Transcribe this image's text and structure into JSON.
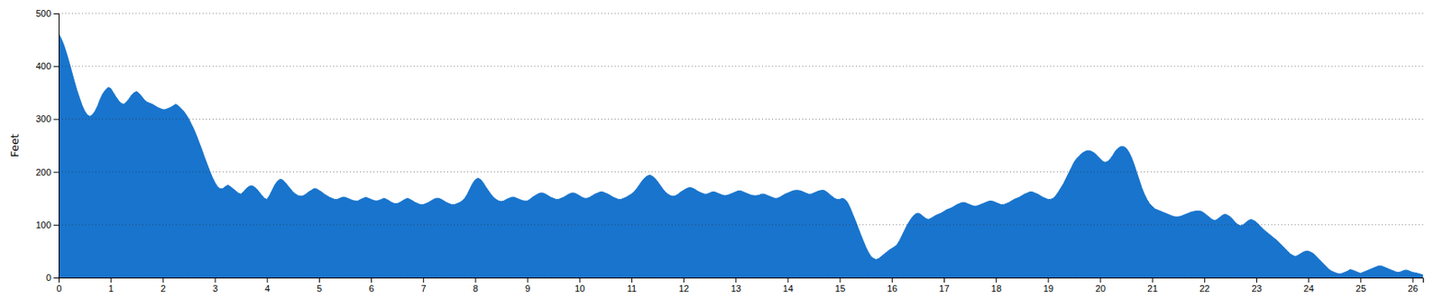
{
  "chart_data": {
    "type": "area",
    "ylabel": "Feet",
    "color": "#1874CD",
    "grid": true,
    "xlim": [
      0,
      26.2
    ],
    "ylim": [
      0,
      500
    ],
    "xticks": [
      0,
      1,
      2,
      3,
      4,
      5,
      6,
      7,
      8,
      9,
      10,
      11,
      12,
      13,
      14,
      15,
      16,
      17,
      18,
      19,
      20,
      21,
      22,
      23,
      24,
      25,
      26
    ],
    "yticks": [
      0,
      100,
      200,
      300,
      400,
      500
    ],
    "x": [
      0.0,
      0.05,
      0.1,
      0.15,
      0.2,
      0.25,
      0.3,
      0.35,
      0.4,
      0.45,
      0.5,
      0.55,
      0.6,
      0.65,
      0.7,
      0.75,
      0.8,
      0.85,
      0.9,
      0.95,
      1.0,
      1.05,
      1.1,
      1.15,
      1.2,
      1.25,
      1.3,
      1.35,
      1.4,
      1.45,
      1.5,
      1.55,
      1.6,
      1.65,
      1.7,
      1.75,
      1.8,
      1.85,
      1.9,
      1.95,
      2.0,
      2.05,
      2.1,
      2.15,
      2.2,
      2.25,
      2.3,
      2.35,
      2.4,
      2.45,
      2.5,
      2.55,
      2.6,
      2.65,
      2.7,
      2.75,
      2.8,
      2.85,
      2.9,
      2.95,
      3.0,
      3.05,
      3.1,
      3.15,
      3.2,
      3.25,
      3.3,
      3.35,
      3.4,
      3.45,
      3.5,
      3.55,
      3.6,
      3.65,
      3.7,
      3.75,
      3.8,
      3.85,
      3.9,
      3.95,
      4.0,
      4.05,
      4.1,
      4.15,
      4.2,
      4.25,
      4.3,
      4.35,
      4.4,
      4.45,
      4.5,
      4.55,
      4.6,
      4.65,
      4.7,
      4.75,
      4.8,
      4.85,
      4.9,
      4.95,
      5.0,
      5.05,
      5.1,
      5.15,
      5.2,
      5.25,
      5.3,
      5.35,
      5.4,
      5.45,
      5.5,
      5.55,
      5.6,
      5.65,
      5.7,
      5.75,
      5.8,
      5.85,
      5.9,
      5.95,
      6.0,
      6.05,
      6.1,
      6.15,
      6.2,
      6.25,
      6.3,
      6.35,
      6.4,
      6.45,
      6.5,
      6.55,
      6.6,
      6.65,
      6.7,
      6.75,
      6.8,
      6.85,
      6.9,
      6.95,
      7.0,
      7.05,
      7.1,
      7.15,
      7.2,
      7.25,
      7.3,
      7.35,
      7.4,
      7.45,
      7.5,
      7.55,
      7.6,
      7.65,
      7.7,
      7.75,
      7.8,
      7.85,
      7.9,
      7.95,
      8.0,
      8.05,
      8.1,
      8.15,
      8.2,
      8.25,
      8.3,
      8.35,
      8.4,
      8.45,
      8.5,
      8.55,
      8.6,
      8.65,
      8.7,
      8.75,
      8.8,
      8.85,
      8.9,
      8.95,
      9.0,
      9.05,
      9.1,
      9.15,
      9.2,
      9.25,
      9.3,
      9.35,
      9.4,
      9.45,
      9.5,
      9.55,
      9.6,
      9.65,
      9.7,
      9.75,
      9.8,
      9.85,
      9.9,
      9.95,
      10.0,
      10.05,
      10.1,
      10.15,
      10.2,
      10.25,
      10.3,
      10.35,
      10.4,
      10.45,
      10.5,
      10.55,
      10.6,
      10.65,
      10.7,
      10.75,
      10.8,
      10.85,
      10.9,
      10.95,
      11.0,
      11.05,
      11.1,
      11.15,
      11.2,
      11.25,
      11.3,
      11.35,
      11.4,
      11.45,
      11.5,
      11.55,
      11.6,
      11.65,
      11.7,
      11.75,
      11.8,
      11.85,
      11.9,
      11.95,
      12.0,
      12.05,
      12.1,
      12.15,
      12.2,
      12.25,
      12.3,
      12.35,
      12.4,
      12.45,
      12.5,
      12.55,
      12.6,
      12.65,
      12.7,
      12.75,
      12.8,
      12.85,
      12.9,
      12.95,
      13.0,
      13.05,
      13.1,
      13.15,
      13.2,
      13.25,
      13.3,
      13.35,
      13.4,
      13.45,
      13.5,
      13.55,
      13.6,
      13.65,
      13.7,
      13.75,
      13.8,
      13.85,
      13.9,
      13.95,
      14.0,
      14.05,
      14.1,
      14.15,
      14.2,
      14.25,
      14.3,
      14.35,
      14.4,
      14.45,
      14.5,
      14.55,
      14.6,
      14.65,
      14.7,
      14.75,
      14.8,
      14.85,
      14.9,
      14.95,
      15.0,
      15.05,
      15.1,
      15.15,
      15.2,
      15.25,
      15.3,
      15.35,
      15.4,
      15.45,
      15.5,
      15.55,
      15.6,
      15.65,
      15.7,
      15.75,
      15.8,
      15.85,
      15.9,
      15.95,
      16.0,
      16.05,
      16.1,
      16.15,
      16.2,
      16.25,
      16.3,
      16.35,
      16.4,
      16.45,
      16.5,
      16.55,
      16.6,
      16.65,
      16.7,
      16.75,
      16.8,
      16.85,
      16.9,
      16.95,
      17.0,
      17.05,
      17.1,
      17.15,
      17.2,
      17.25,
      17.3,
      17.35,
      17.4,
      17.45,
      17.5,
      17.55,
      17.6,
      17.65,
      17.7,
      17.75,
      17.8,
      17.85,
      17.9,
      17.95,
      18.0,
      18.05,
      18.1,
      18.15,
      18.2,
      18.25,
      18.3,
      18.35,
      18.4,
      18.45,
      18.5,
      18.55,
      18.6,
      18.65,
      18.7,
      18.75,
      18.8,
      18.85,
      18.9,
      18.95,
      19.0,
      19.05,
      19.1,
      19.15,
      19.2,
      19.25,
      19.3,
      19.35,
      19.4,
      19.45,
      19.5,
      19.55,
      19.6,
      19.65,
      19.7,
      19.75,
      19.8,
      19.85,
      19.9,
      19.95,
      20.0,
      20.05,
      20.1,
      20.15,
      20.2,
      20.25,
      20.3,
      20.35,
      20.4,
      20.45,
      20.5,
      20.55,
      20.6,
      20.65,
      20.7,
      20.75,
      20.8,
      20.85,
      20.9,
      20.95,
      21.0,
      21.05,
      21.1,
      21.15,
      21.2,
      21.25,
      21.3,
      21.35,
      21.4,
      21.45,
      21.5,
      21.55,
      21.6,
      21.65,
      21.7,
      21.75,
      21.8,
      21.85,
      21.9,
      21.95,
      22.0,
      22.05,
      22.1,
      22.15,
      22.2,
      22.25,
      22.3,
      22.35,
      22.4,
      22.45,
      22.5,
      22.55,
      22.6,
      22.65,
      22.7,
      22.75,
      22.8,
      22.85,
      22.9,
      22.95,
      23.0,
      23.05,
      23.1,
      23.15,
      23.2,
      23.25,
      23.3,
      23.35,
      23.4,
      23.45,
      23.5,
      23.55,
      23.6,
      23.65,
      23.7,
      23.75,
      23.8,
      23.85,
      23.9,
      23.95,
      24.0,
      24.05,
      24.1,
      24.15,
      24.2,
      24.25,
      24.3,
      24.35,
      24.4,
      24.45,
      24.5,
      24.55,
      24.6,
      24.65,
      24.7,
      24.75,
      24.8,
      24.85,
      24.9,
      24.95,
      25.0,
      25.05,
      25.1,
      25.15,
      25.2,
      25.25,
      25.3,
      25.35,
      25.4,
      25.45,
      25.5,
      25.55,
      25.6,
      25.65,
      25.7,
      25.75,
      25.8,
      25.85,
      25.9,
      25.95,
      26.0,
      26.1,
      26.2
    ],
    "values": [
      462,
      452,
      440,
      425,
      408,
      390,
      372,
      355,
      340,
      326,
      315,
      308,
      305,
      308,
      315,
      325,
      338,
      348,
      355,
      360,
      358,
      350,
      342,
      335,
      330,
      328,
      332,
      338,
      345,
      350,
      352,
      348,
      342,
      336,
      332,
      330,
      328,
      325,
      322,
      320,
      318,
      318,
      320,
      322,
      325,
      328,
      325,
      320,
      315,
      308,
      300,
      290,
      280,
      268,
      255,
      242,
      228,
      215,
      202,
      190,
      180,
      172,
      168,
      168,
      172,
      175,
      172,
      168,
      164,
      160,
      158,
      162,
      168,
      172,
      174,
      172,
      168,
      162,
      156,
      150,
      148,
      155,
      165,
      175,
      182,
      186,
      185,
      180,
      174,
      168,
      162,
      158,
      155,
      154,
      155,
      158,
      162,
      165,
      168,
      168,
      165,
      162,
      158,
      155,
      152,
      150,
      148,
      148,
      150,
      152,
      152,
      150,
      148,
      146,
      145,
      145,
      148,
      150,
      152,
      150,
      148,
      146,
      145,
      146,
      148,
      150,
      148,
      145,
      142,
      140,
      140,
      142,
      145,
      148,
      150,
      148,
      145,
      142,
      140,
      138,
      138,
      140,
      142,
      145,
      148,
      150,
      150,
      148,
      145,
      142,
      140,
      138,
      138,
      140,
      142,
      145,
      150,
      158,
      168,
      178,
      185,
      188,
      186,
      180,
      172,
      165,
      158,
      152,
      148,
      145,
      144,
      145,
      148,
      150,
      152,
      152,
      150,
      148,
      146,
      145,
      145,
      148,
      152,
      155,
      158,
      160,
      160,
      158,
      155,
      152,
      150,
      148,
      148,
      150,
      152,
      155,
      158,
      160,
      160,
      158,
      155,
      152,
      150,
      150,
      152,
      155,
      158,
      160,
      162,
      162,
      160,
      158,
      155,
      152,
      150,
      148,
      148,
      150,
      152,
      155,
      158,
      162,
      168,
      175,
      182,
      188,
      192,
      194,
      192,
      188,
      182,
      175,
      168,
      162,
      158,
      155,
      154,
      155,
      158,
      162,
      165,
      168,
      170,
      170,
      168,
      165,
      162,
      160,
      158,
      158,
      160,
      162,
      162,
      160,
      158,
      156,
      155,
      156,
      158,
      160,
      162,
      164,
      164,
      162,
      160,
      158,
      156,
      155,
      155,
      156,
      158,
      158,
      156,
      154,
      152,
      150,
      150,
      152,
      155,
      158,
      160,
      162,
      164,
      165,
      165,
      164,
      162,
      160,
      158,
      158,
      160,
      162,
      164,
      165,
      165,
      162,
      158,
      154,
      150,
      148,
      148,
      150,
      148,
      142,
      132,
      120,
      108,
      95,
      82,
      70,
      58,
      48,
      40,
      36,
      34,
      36,
      40,
      44,
      48,
      52,
      55,
      58,
      62,
      70,
      80,
      90,
      100,
      108,
      115,
      120,
      122,
      120,
      116,
      112,
      110,
      112,
      115,
      118,
      120,
      122,
      125,
      128,
      130,
      132,
      135,
      138,
      140,
      142,
      142,
      140,
      138,
      136,
      135,
      136,
      138,
      140,
      142,
      144,
      145,
      144,
      142,
      140,
      138,
      138,
      140,
      142,
      145,
      148,
      150,
      152,
      155,
      158,
      160,
      162,
      162,
      160,
      158,
      155,
      152,
      150,
      148,
      148,
      150,
      155,
      162,
      170,
      178,
      188,
      198,
      208,
      218,
      225,
      230,
      235,
      238,
      240,
      240,
      238,
      235,
      230,
      225,
      220,
      218,
      220,
      225,
      232,
      240,
      245,
      248,
      248,
      245,
      238,
      228,
      215,
      200,
      185,
      170,
      158,
      148,
      140,
      135,
      130,
      128,
      126,
      124,
      122,
      120,
      118,
      116,
      115,
      115,
      116,
      118,
      120,
      122,
      124,
      125,
      126,
      126,
      125,
      122,
      118,
      114,
      110,
      108,
      110,
      114,
      118,
      120,
      118,
      115,
      110,
      104,
      100,
      98,
      100,
      104,
      108,
      110,
      108,
      105,
      100,
      95,
      90,
      86,
      82,
      78,
      74,
      70,
      65,
      60,
      55,
      50,
      45,
      42,
      40,
      42,
      45,
      48,
      50,
      50,
      48,
      45,
      40,
      35,
      30,
      25,
      20,
      15,
      12,
      10,
      8,
      7,
      8,
      10,
      12,
      15,
      14,
      12,
      10,
      8,
      10,
      12,
      14,
      16,
      18,
      20,
      22,
      22,
      20,
      18,
      16,
      14,
      12,
      10,
      10,
      12,
      14,
      14,
      12,
      10,
      8,
      5
    ]
  }
}
